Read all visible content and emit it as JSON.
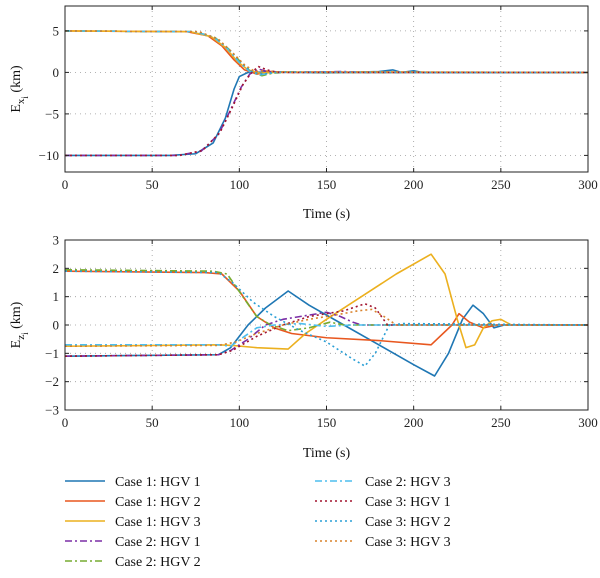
{
  "legend": {
    "entries": [
      {
        "label": "Case 1: HGV 1",
        "color": "#1f77b4",
        "dash": "solid"
      },
      {
        "label": "Case 1: HGV 2",
        "color": "#e8571f",
        "dash": "solid"
      },
      {
        "label": "Case 1: HGV 3",
        "color": "#ecb01f",
        "dash": "solid"
      },
      {
        "label": "Case 2: HGV 1",
        "color": "#7b2fa6",
        "dash": "dashdot"
      },
      {
        "label": "Case 2: HGV 2",
        "color": "#77ac30",
        "dash": "dashdot"
      },
      {
        "label": "Case 2: HGV 3",
        "color": "#4dbeee",
        "dash": "dashdot"
      },
      {
        "label": "Case 3: HGV 1",
        "color": "#a2142f",
        "dash": "dotted"
      },
      {
        "label": "Case 3: HGV 2",
        "color": "#2a9fd6",
        "dash": "dotted"
      },
      {
        "label": "Case 3: HGV 3",
        "color": "#d9822b",
        "dash": "dotted"
      }
    ]
  },
  "chart_data": [
    {
      "type": "line",
      "xlabel": "Time (s)",
      "ylabel_main": "E",
      "ylabel_sub": "x",
      "ylabel_subsub": "i",
      "ylabel_unit": " (km)",
      "xlim": [
        0,
        300
      ],
      "ylim": [
        -12,
        8
      ],
      "xticks": [
        0,
        50,
        100,
        150,
        200,
        250,
        300
      ],
      "yticks": [
        -10,
        -5,
        0,
        5
      ],
      "grid": true,
      "series": [
        {
          "legend_index": 0,
          "points": [
            [
              0,
              -10
            ],
            [
              60,
              -10
            ],
            [
              75,
              -9.8
            ],
            [
              85,
              -8.5
            ],
            [
              92,
              -5.5
            ],
            [
              97,
              -2
            ],
            [
              100,
              -0.5
            ],
            [
              105,
              0
            ],
            [
              120,
              0.05
            ],
            [
              150,
              -0.05
            ],
            [
              160,
              0
            ],
            [
              180,
              0.1
            ],
            [
              188,
              0.3
            ],
            [
              193,
              0
            ],
            [
              200,
              0.2
            ],
            [
              205,
              0
            ],
            [
              300,
              0
            ]
          ]
        },
        {
          "legend_index": 1,
          "points": [
            [
              0,
              5
            ],
            [
              70,
              4.9
            ],
            [
              82,
              4.4
            ],
            [
              90,
              3.2
            ],
            [
              97,
              1.5
            ],
            [
              103,
              0.3
            ],
            [
              110,
              -0.2
            ],
            [
              118,
              0.1
            ],
            [
              130,
              0
            ],
            [
              150,
              0.05
            ],
            [
              165,
              0
            ],
            [
              300,
              0
            ]
          ]
        },
        {
          "legend_index": 2,
          "points": [
            [
              0,
              5
            ],
            [
              72,
              4.9
            ],
            [
              84,
              4.3
            ],
            [
              92,
              3
            ],
            [
              99,
              1.3
            ],
            [
              105,
              0.3
            ],
            [
              112,
              -0.1
            ],
            [
              125,
              0.05
            ],
            [
              150,
              0
            ],
            [
              175,
              0.05
            ],
            [
              300,
              0
            ]
          ]
        },
        {
          "legend_index": 3,
          "points": [
            [
              0,
              -10
            ],
            [
              65,
              -10
            ],
            [
              78,
              -9.5
            ],
            [
              88,
              -7.5
            ],
            [
              95,
              -4.5
            ],
            [
              101,
              -1.8
            ],
            [
              106,
              -0.2
            ],
            [
              111,
              0.4
            ],
            [
              116,
              0.1
            ],
            [
              125,
              0
            ],
            [
              160,
              0.1
            ],
            [
              170,
              0
            ],
            [
              300,
              0
            ]
          ]
        },
        {
          "legend_index": 4,
          "points": [
            [
              0,
              5
            ],
            [
              75,
              4.9
            ],
            [
              86,
              4.2
            ],
            [
              94,
              2.8
            ],
            [
              101,
              1.2
            ],
            [
              107,
              0
            ],
            [
              113,
              -0.4
            ],
            [
              119,
              -0.1
            ],
            [
              128,
              0.05
            ],
            [
              150,
              0
            ],
            [
              300,
              0
            ]
          ]
        },
        {
          "legend_index": 5,
          "points": [
            [
              0,
              5
            ],
            [
              74,
              4.9
            ],
            [
              85,
              4.3
            ],
            [
              93,
              2.9
            ],
            [
              100,
              1.2
            ],
            [
              106,
              0.1
            ],
            [
              112,
              -0.3
            ],
            [
              120,
              0
            ],
            [
              150,
              0.05
            ],
            [
              200,
              0
            ],
            [
              300,
              0
            ]
          ]
        },
        {
          "legend_index": 6,
          "points": [
            [
              0,
              -10
            ],
            [
              66,
              -10
            ],
            [
              79,
              -9.4
            ],
            [
              89,
              -7.2
            ],
            [
              96,
              -4.2
            ],
            [
              102,
              -1.5
            ],
            [
              107,
              0
            ],
            [
              111,
              0.7
            ],
            [
              116,
              0.3
            ],
            [
              122,
              0
            ],
            [
              160,
              0
            ],
            [
              300,
              0
            ]
          ]
        },
        {
          "legend_index": 7,
          "points": [
            [
              0,
              5
            ],
            [
              76,
              4.9
            ],
            [
              87,
              4.1
            ],
            [
              95,
              2.6
            ],
            [
              102,
              1
            ],
            [
              108,
              0
            ],
            [
              114,
              -0.2
            ],
            [
              122,
              0.05
            ],
            [
              150,
              0
            ],
            [
              300,
              0
            ]
          ]
        },
        {
          "legend_index": 8,
          "points": [
            [
              0,
              5
            ],
            [
              77,
              4.9
            ],
            [
              88,
              4
            ],
            [
              96,
              2.4
            ],
            [
              103,
              0.9
            ],
            [
              109,
              0.1
            ],
            [
              114,
              0.2
            ],
            [
              125,
              0
            ],
            [
              150,
              0.05
            ],
            [
              300,
              0
            ]
          ]
        }
      ]
    },
    {
      "type": "line",
      "xlabel": "Time (s)",
      "ylabel_main": "E",
      "ylabel_sub": "z",
      "ylabel_subsub": "i",
      "ylabel_unit": " (km)",
      "xlim": [
        0,
        300
      ],
      "ylim": [
        -3,
        3
      ],
      "xticks": [
        0,
        50,
        100,
        150,
        200,
        250,
        300
      ],
      "yticks": [
        -3,
        -2,
        -1,
        0,
        1,
        2,
        3
      ],
      "grid": true,
      "series": [
        {
          "legend_index": 0,
          "points": [
            [
              0,
              -1.1
            ],
            [
              88,
              -1.05
            ],
            [
              95,
              -0.8
            ],
            [
              105,
              0
            ],
            [
              115,
              0.6
            ],
            [
              128,
              1.2
            ],
            [
              140,
              0.7
            ],
            [
              160,
              0
            ],
            [
              180,
              -0.7
            ],
            [
              200,
              -1.4
            ],
            [
              212,
              -1.8
            ],
            [
              220,
              -1
            ],
            [
              228,
              0.2
            ],
            [
              234,
              0.7
            ],
            [
              240,
              0.4
            ],
            [
              246,
              -0.1
            ],
            [
              252,
              0
            ],
            [
              300,
              0
            ]
          ]
        },
        {
          "legend_index": 1,
          "points": [
            [
              0,
              1.9
            ],
            [
              80,
              1.85
            ],
            [
              90,
              1.8
            ],
            [
              100,
              1.2
            ],
            [
              110,
              0.3
            ],
            [
              120,
              -0.1
            ],
            [
              130,
              -0.3
            ],
            [
              150,
              -0.45
            ],
            [
              180,
              -0.55
            ],
            [
              210,
              -0.7
            ],
            [
              222,
              0
            ],
            [
              226,
              0.4
            ],
            [
              232,
              0.1
            ],
            [
              240,
              -0.1
            ],
            [
              248,
              0
            ],
            [
              300,
              0
            ]
          ]
        },
        {
          "legend_index": 2,
          "points": [
            [
              0,
              -0.75
            ],
            [
              88,
              -0.7
            ],
            [
              96,
              -0.72
            ],
            [
              110,
              -0.8
            ],
            [
              128,
              -0.85
            ],
            [
              138,
              -0.3
            ],
            [
              150,
              0.2
            ],
            [
              165,
              0.8
            ],
            [
              190,
              1.8
            ],
            [
              210,
              2.5
            ],
            [
              218,
              1.8
            ],
            [
              225,
              0.2
            ],
            [
              230,
              -0.8
            ],
            [
              235,
              -0.7
            ],
            [
              240,
              -0.1
            ],
            [
              245,
              0.15
            ],
            [
              250,
              0.2
            ],
            [
              256,
              0
            ],
            [
              300,
              0
            ]
          ]
        },
        {
          "legend_index": 3,
          "points": [
            [
              0,
              -1.1
            ],
            [
              88,
              -1.05
            ],
            [
              95,
              -0.9
            ],
            [
              105,
              -0.5
            ],
            [
              115,
              0
            ],
            [
              125,
              0.2
            ],
            [
              140,
              0.35
            ],
            [
              150,
              0.45
            ],
            [
              158,
              0.3
            ],
            [
              165,
              0.1
            ],
            [
              170,
              0
            ],
            [
              300,
              0
            ]
          ]
        },
        {
          "legend_index": 4,
          "points": [
            [
              0,
              1.95
            ],
            [
              85,
              1.9
            ],
            [
              93,
              1.8
            ],
            [
              102,
              1
            ],
            [
              110,
              0.3
            ],
            [
              118,
              0
            ],
            [
              128,
              -0.2
            ],
            [
              140,
              -0.1
            ],
            [
              152,
              0.1
            ],
            [
              160,
              0
            ],
            [
              300,
              0
            ]
          ]
        },
        {
          "legend_index": 5,
          "points": [
            [
              0,
              -0.7
            ],
            [
              88,
              -0.7
            ],
            [
              95,
              -0.75
            ],
            [
              103,
              -0.4
            ],
            [
              110,
              -0.1
            ],
            [
              120,
              0
            ],
            [
              135,
              0.05
            ],
            [
              150,
              -0.05
            ],
            [
              165,
              0
            ],
            [
              300,
              0
            ]
          ]
        },
        {
          "legend_index": 6,
          "points": [
            [
              0,
              -1.1
            ],
            [
              88,
              -1.05
            ],
            [
              96,
              -0.9
            ],
            [
              110,
              -0.4
            ],
            [
              125,
              0
            ],
            [
              140,
              0.3
            ],
            [
              160,
              0.5
            ],
            [
              172,
              0.75
            ],
            [
              178,
              0.6
            ],
            [
              185,
              0
            ],
            [
              192,
              0
            ],
            [
              300,
              0
            ]
          ]
        },
        {
          "legend_index": 7,
          "points": [
            [
              0,
              1.9
            ],
            [
              88,
              1.85
            ],
            [
              96,
              1.5
            ],
            [
              108,
              0.8
            ],
            [
              120,
              0.3
            ],
            [
              135,
              -0.2
            ],
            [
              150,
              -0.6
            ],
            [
              165,
              -1.2
            ],
            [
              172,
              -1.45
            ],
            [
              178,
              -1
            ],
            [
              186,
              0
            ],
            [
              194,
              0.05
            ],
            [
              300,
              0
            ]
          ]
        },
        {
          "legend_index": 8,
          "points": [
            [
              0,
              -0.75
            ],
            [
              88,
              -0.72
            ],
            [
              98,
              -0.6
            ],
            [
              110,
              -0.3
            ],
            [
              125,
              0
            ],
            [
              140,
              0.2
            ],
            [
              155,
              0.35
            ],
            [
              168,
              0.5
            ],
            [
              176,
              0.55
            ],
            [
              183,
              0.3
            ],
            [
              190,
              0
            ],
            [
              300,
              0
            ]
          ]
        }
      ]
    }
  ]
}
